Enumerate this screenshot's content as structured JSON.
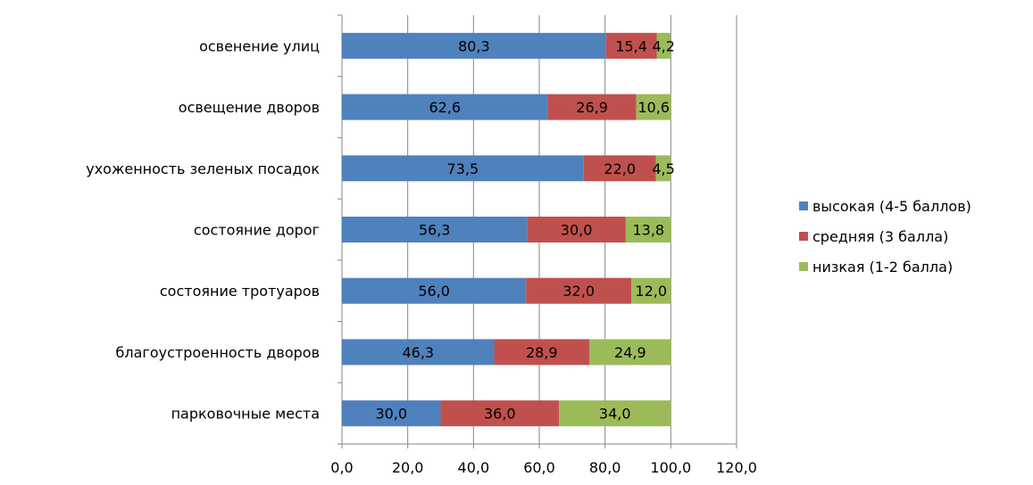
{
  "chart_data": {
    "type": "bar",
    "orientation": "horizontal",
    "stacked": true,
    "title": "",
    "xlabel": "",
    "ylabel": "",
    "xlim": [
      0,
      120
    ],
    "x_ticks": [
      "0,0",
      "20,0",
      "40,0",
      "60,0",
      "80,0",
      "100,0",
      "120,0"
    ],
    "grid": true,
    "legend_position": "right",
    "categories": [
      "освенение улиц",
      "освещение дворов",
      "ухоженность зеленых посадок",
      "состояние дорог",
      "состояние тротуаров",
      "благоустроенность дворов",
      "парковочные места"
    ],
    "series": [
      {
        "name": "высокая (4-5 баллов)",
        "color": "#4F81BD",
        "values": [
          80.3,
          62.6,
          73.5,
          56.3,
          56.0,
          46.3,
          30.0
        ],
        "labels": [
          "80,3",
          "62,6",
          "73,5",
          "56,3",
          "56,0",
          "46,3",
          "30,0"
        ]
      },
      {
        "name": "средняя (3 балла)",
        "color": "#C0504D",
        "values": [
          15.4,
          26.9,
          22.0,
          30.0,
          32.0,
          28.9,
          36.0
        ],
        "labels": [
          "15,4",
          "26,9",
          "22,0",
          "30,0",
          "32,0",
          "28,9",
          "36,0"
        ]
      },
      {
        "name": "низкая (1-2 балла)",
        "color": "#9BBB59",
        "values": [
          4.2,
          10.6,
          4.5,
          13.8,
          12.0,
          24.9,
          34.0
        ],
        "labels": [
          "4,2",
          "10,6",
          "4,5",
          "13,8",
          "12,0",
          "24,9",
          "34,0"
        ]
      }
    ]
  }
}
